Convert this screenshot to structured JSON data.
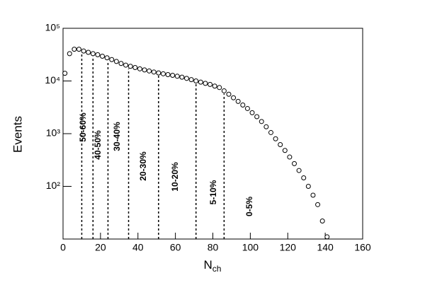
{
  "chart_data": {
    "type": "scatter",
    "xlabel": "N",
    "xlabel_subscript": "ch",
    "ylabel": "Events",
    "xlim": [
      0,
      160
    ],
    "xticks": [
      0,
      20,
      40,
      60,
      80,
      100,
      120,
      140,
      160
    ],
    "ylim": [
      10,
      100000
    ],
    "ylog": true,
    "yticks": [
      {
        "value": 100,
        "label": "10²"
      },
      {
        "value": 1000,
        "label": "10³"
      },
      {
        "value": 10000,
        "label": "10⁴"
      },
      {
        "value": 100000,
        "label": "10⁵"
      }
    ],
    "color": "#000000",
    "series": [
      {
        "x": [
          1,
          3.5,
          6,
          8.5,
          11,
          13.5,
          16,
          18.5,
          21,
          23.5,
          26,
          28.5,
          31,
          33.5,
          36,
          38.5,
          41,
          43.5,
          46,
          48.5,
          51,
          53.5,
          56,
          58.5,
          61,
          63.5,
          66,
          68.5,
          71,
          73.5,
          76,
          78.5,
          81,
          83.5,
          86,
          88.5,
          91,
          93.5,
          96,
          98.5,
          101,
          103.5,
          106,
          108.5,
          111,
          113.5,
          116,
          118.5,
          121,
          123.5,
          126,
          128.5,
          131,
          133.5,
          136,
          138.5,
          141
        ],
        "values": [
          14000,
          33000,
          40000,
          40000,
          37000,
          35000,
          33000,
          31500,
          29500,
          27500,
          25500,
          23500,
          21500,
          20000,
          19000,
          18000,
          17000,
          16200,
          15500,
          14800,
          14200,
          13700,
          13200,
          12800,
          12300,
          11800,
          11200,
          10600,
          10000,
          9500,
          9000,
          8600,
          8000,
          7500,
          6500,
          5600,
          4800,
          4100,
          3500,
          3000,
          2500,
          2100,
          1700,
          1350,
          1050,
          800,
          620,
          480,
          360,
          270,
          200,
          145,
          100,
          68,
          45,
          22,
          11
        ]
      }
    ],
    "cuts": [
      10,
      16,
      24,
      35,
      51,
      71,
      86
    ],
    "cut_labels": [
      "50-60%",
      "40-50%",
      "30-40%",
      "20-30%",
      "10-20%",
      "5-10%",
      "0-5%"
    ]
  }
}
